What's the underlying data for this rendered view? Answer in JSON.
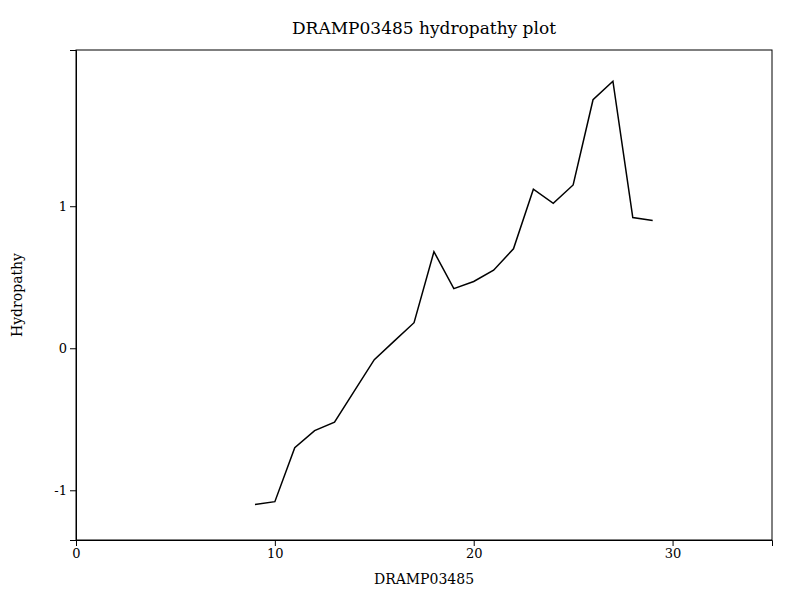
{
  "chart_data": {
    "type": "line",
    "title": "DRAMP03485 hydropathy plot",
    "xlabel": "DRAMP03485",
    "ylabel": "Hydropathy",
    "x": [
      9,
      10,
      11,
      12,
      13,
      14,
      15,
      16,
      17,
      18,
      19,
      20,
      21,
      22,
      23,
      24,
      25,
      26,
      27,
      28,
      29
    ],
    "values": [
      -1.1,
      -1.08,
      -0.7,
      -0.58,
      -0.52,
      -0.3,
      -0.08,
      0.05,
      0.18,
      0.68,
      0.42,
      0.47,
      0.55,
      0.7,
      1.12,
      1.02,
      1.15,
      1.75,
      1.88,
      0.92,
      0.9
    ],
    "color": "#000000",
    "xlim": [
      0,
      35
    ],
    "ylim": [
      -1.35,
      2.1
    ],
    "xticks": [
      0,
      10,
      20,
      30
    ],
    "yticks": [
      -1,
      0,
      1
    ]
  }
}
